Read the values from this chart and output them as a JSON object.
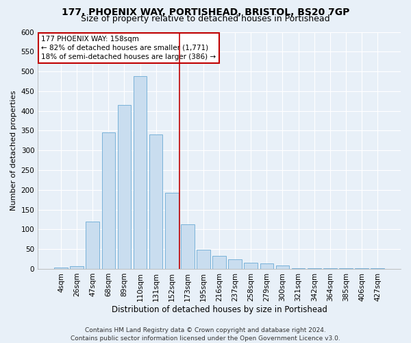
{
  "title1": "177, PHOENIX WAY, PORTISHEAD, BRISTOL, BS20 7GP",
  "title2": "Size of property relative to detached houses in Portishead",
  "xlabel": "Distribution of detached houses by size in Portishead",
  "ylabel": "Number of detached properties",
  "categories": [
    "4sqm",
    "26sqm",
    "47sqm",
    "68sqm",
    "89sqm",
    "110sqm",
    "131sqm",
    "152sqm",
    "173sqm",
    "195sqm",
    "216sqm",
    "237sqm",
    "258sqm",
    "279sqm",
    "300sqm",
    "321sqm",
    "342sqm",
    "364sqm",
    "385sqm",
    "406sqm",
    "427sqm"
  ],
  "values": [
    3,
    7,
    120,
    345,
    415,
    488,
    340,
    193,
    113,
    48,
    33,
    25,
    16,
    13,
    8,
    2,
    1,
    1,
    1,
    1,
    1
  ],
  "bar_color": "#c9ddef",
  "bar_edge_color": "#6aaad4",
  "vline_x": 7.5,
  "vline_color": "#c00000",
  "annotation_text": "177 PHOENIX WAY: 158sqm\n← 82% of detached houses are smaller (1,771)\n18% of semi-detached houses are larger (386) →",
  "annotation_box_color": "#ffffff",
  "annotation_box_edge": "#c00000",
  "ylim": [
    0,
    600
  ],
  "yticks": [
    0,
    50,
    100,
    150,
    200,
    250,
    300,
    350,
    400,
    450,
    500,
    550,
    600
  ],
  "background_color": "#e8f0f8",
  "grid_color": "#ffffff",
  "footer1": "Contains HM Land Registry data © Crown copyright and database right 2024.",
  "footer2": "Contains public sector information licensed under the Open Government Licence v3.0.",
  "title1_fontsize": 10,
  "title2_fontsize": 9,
  "xlabel_fontsize": 8.5,
  "ylabel_fontsize": 8,
  "tick_fontsize": 7.5,
  "annotation_fontsize": 7.5,
  "footer_fontsize": 6.5
}
